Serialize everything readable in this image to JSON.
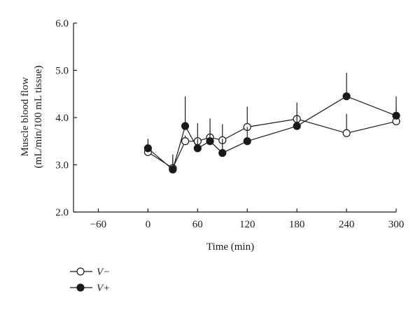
{
  "chart_data": {
    "type": "line",
    "xlabel": "Time (min)",
    "ylabel_lines": [
      "Muscle blood flow",
      "(mL/min/100 mL tissue)"
    ],
    "xlim": [
      -90,
      300
    ],
    "ylim": [
      2.0,
      6.0
    ],
    "x_ticks": [
      -60,
      0,
      60,
      120,
      180,
      240,
      300
    ],
    "x_tick_labels": [
      "−60",
      "0",
      "60",
      "120",
      "180",
      "240",
      "300"
    ],
    "y_ticks": [
      2.0,
      3.0,
      4.0,
      5.0,
      6.0
    ],
    "y_tick_labels": [
      "2.0",
      "3.0",
      "4.0",
      "5.0",
      "6.0"
    ],
    "grid": false,
    "legend_position": "bottom-left, below axes",
    "series": [
      {
        "name": "V−",
        "marker": "open-circle",
        "x": [
          0,
          30,
          45,
          60,
          75,
          90,
          120,
          180,
          240,
          300
        ],
        "y": [
          3.27,
          2.93,
          3.5,
          3.5,
          3.58,
          3.52,
          3.8,
          3.97,
          3.67,
          3.92
        ],
        "err_upper": [
          3.45,
          3.12,
          3.62,
          3.88,
          3.98,
          3.86,
          4.23,
          4.32,
          4.08,
          4.2
        ]
      },
      {
        "name": "V+",
        "marker": "filled-circle",
        "x": [
          0,
          30,
          45,
          60,
          75,
          90,
          120,
          180,
          240,
          300
        ],
        "y": [
          3.35,
          2.9,
          3.82,
          3.35,
          3.5,
          3.25,
          3.5,
          3.82,
          4.45,
          4.04
        ],
        "err_upper": [
          3.55,
          3.22,
          4.45,
          3.55,
          3.72,
          3.55,
          3.8,
          4.05,
          4.95,
          4.45
        ]
      }
    ],
    "colors": {
      "stroke": "#1a1a1a",
      "open_fill": "#ffffff",
      "filled_fill": "#1a1a1a"
    }
  }
}
